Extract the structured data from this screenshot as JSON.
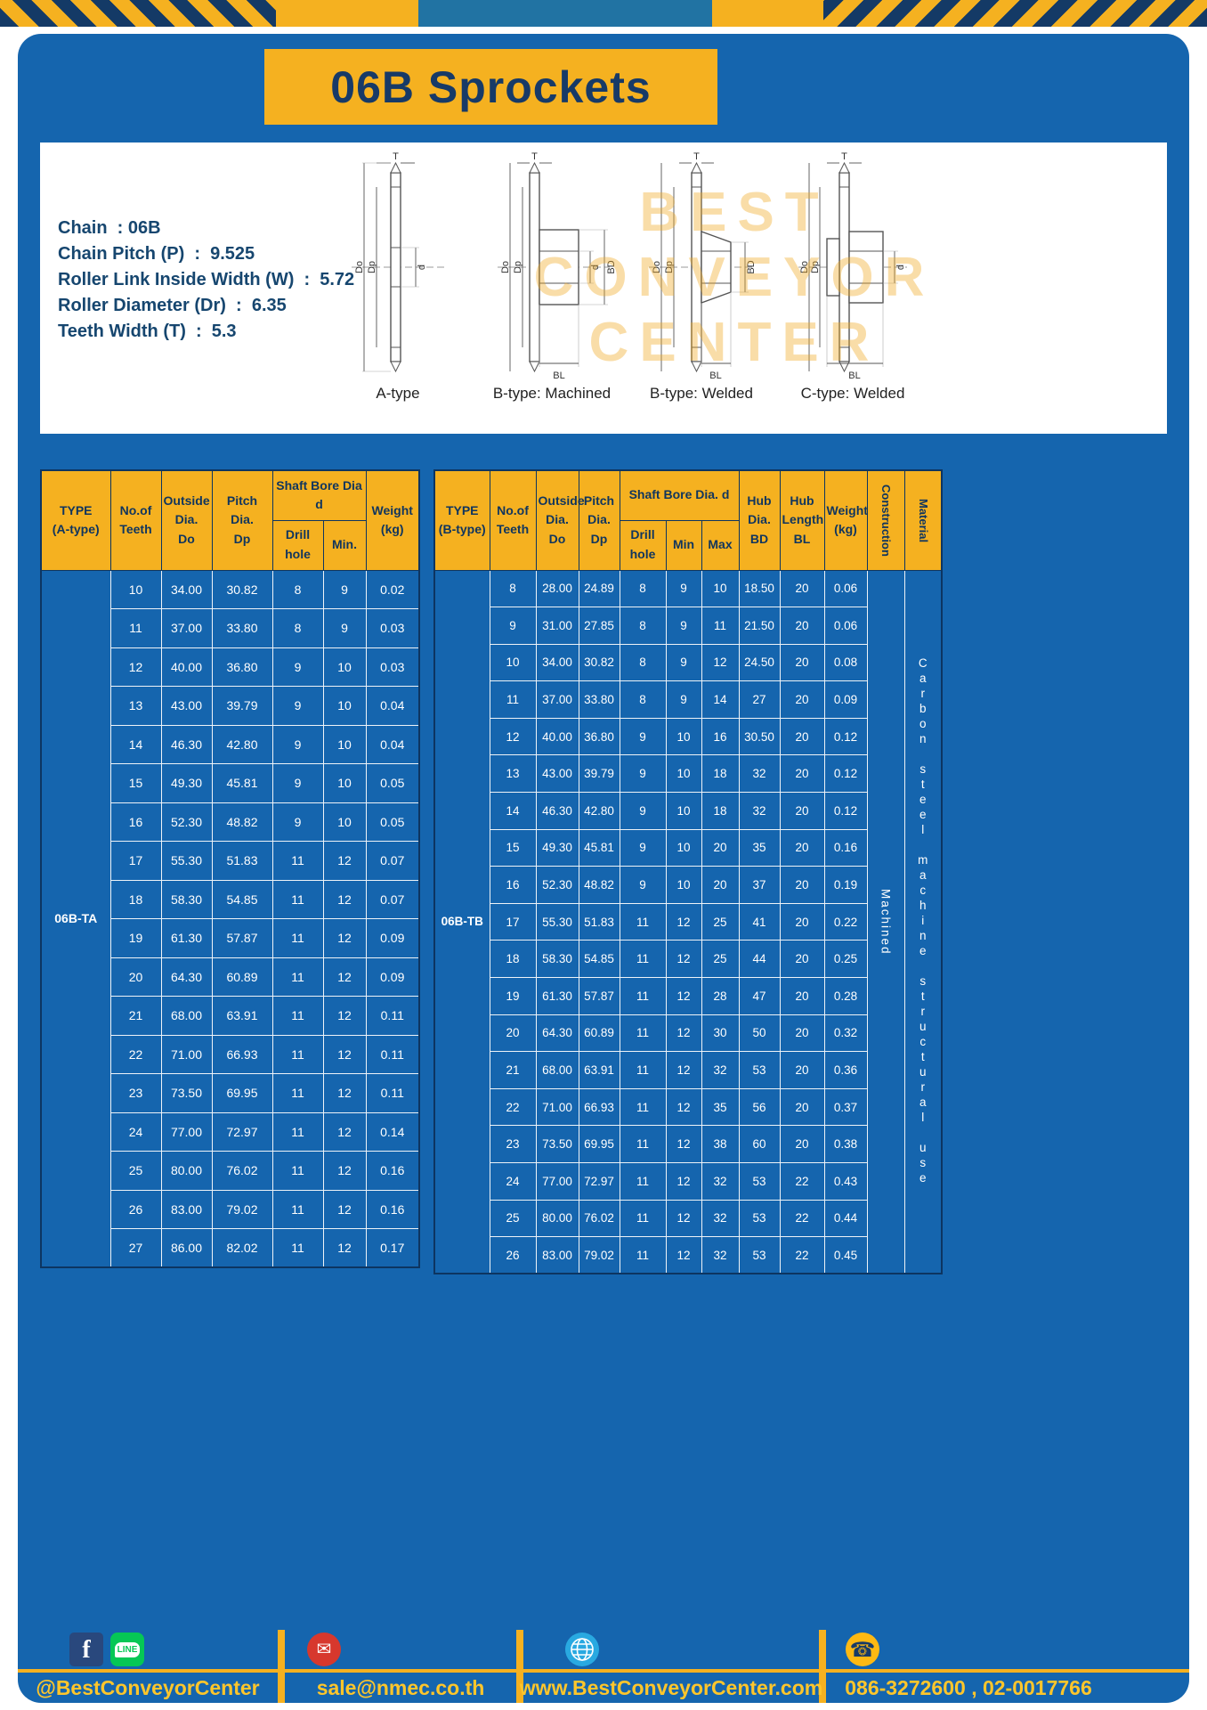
{
  "page": {
    "title": "06B Sprockets"
  },
  "colors": {
    "blue": "#1565ae",
    "yellow": "#f5b120",
    "navy": "#14365f",
    "footer_text": "#ffc62b"
  },
  "specs": {
    "lines": [
      "Chain  : 06B",
      "Chain Pitch (P)  :  9.525",
      "Roller Link Inside Width (W)  :  5.72",
      "Roller Diameter (Dr)  :  6.35",
      "Teeth Width (T)  :  5.3"
    ]
  },
  "watermark": [
    "BEST",
    "CONVEYOR",
    "CENTER"
  ],
  "dims": {
    "t": "T",
    "do": "Do",
    "dp": "Dp",
    "d": "d",
    "bd": "BD",
    "bl": "BL"
  },
  "drawings": [
    {
      "label": "A-type"
    },
    {
      "label": "B-type: Machined"
    },
    {
      "label": "B-type: Welded"
    },
    {
      "label": "C-type: Welded"
    }
  ],
  "tableA": {
    "header": {
      "type": [
        "TYPE",
        "(A-type)"
      ],
      "teeth": [
        "No.of",
        "Teeth"
      ],
      "outside": [
        "Outside",
        "Dia.",
        "Do"
      ],
      "pitch": [
        "Pitch Dia.",
        "Dp"
      ],
      "bore_group": "Shaft Bore Dia d",
      "drill": "Drill hole",
      "min": "Min.",
      "weight": [
        "Weight",
        "(kg)"
      ]
    },
    "type_value": "06B-TA",
    "rows": [
      [
        "10",
        "34.00",
        "30.82",
        "8",
        "9",
        "0.02"
      ],
      [
        "11",
        "37.00",
        "33.80",
        "8",
        "9",
        "0.03"
      ],
      [
        "12",
        "40.00",
        "36.80",
        "9",
        "10",
        "0.03"
      ],
      [
        "13",
        "43.00",
        "39.79",
        "9",
        "10",
        "0.04"
      ],
      [
        "14",
        "46.30",
        "42.80",
        "9",
        "10",
        "0.04"
      ],
      [
        "15",
        "49.30",
        "45.81",
        "9",
        "10",
        "0.05"
      ],
      [
        "16",
        "52.30",
        "48.82",
        "9",
        "10",
        "0.05"
      ],
      [
        "17",
        "55.30",
        "51.83",
        "11",
        "12",
        "0.07"
      ],
      [
        "18",
        "58.30",
        "54.85",
        "11",
        "12",
        "0.07"
      ],
      [
        "19",
        "61.30",
        "57.87",
        "11",
        "12",
        "0.09"
      ],
      [
        "20",
        "64.30",
        "60.89",
        "11",
        "12",
        "0.09"
      ],
      [
        "21",
        "68.00",
        "63.91",
        "11",
        "12",
        "0.11"
      ],
      [
        "22",
        "71.00",
        "66.93",
        "11",
        "12",
        "0.11"
      ],
      [
        "23",
        "73.50",
        "69.95",
        "11",
        "12",
        "0.11"
      ],
      [
        "24",
        "77.00",
        "72.97",
        "11",
        "12",
        "0.14"
      ],
      [
        "25",
        "80.00",
        "76.02",
        "11",
        "12",
        "0.16"
      ],
      [
        "26",
        "83.00",
        "79.02",
        "11",
        "12",
        "0.16"
      ],
      [
        "27",
        "86.00",
        "82.02",
        "11",
        "12",
        "0.17"
      ]
    ]
  },
  "tableB": {
    "header": {
      "type": [
        "TYPE",
        "(B-type)"
      ],
      "teeth": [
        "No.of",
        "Teeth"
      ],
      "outside": [
        "Outside",
        "Dia.",
        "Do"
      ],
      "pitch": [
        "Pitch",
        "Dia.",
        "Dp"
      ],
      "bore_group": "Shaft Bore Dia.  d",
      "drill": "Drill hole",
      "min": "Min",
      "max": "Max",
      "hub_dia": [
        "Hub",
        "Dia.",
        "BD"
      ],
      "hub_len": [
        "Hub",
        "Length",
        "BL"
      ],
      "weight": [
        "Weight",
        "(kg)"
      ],
      "construction": "Construction",
      "material": "Material"
    },
    "type_value": "06B-TB",
    "construction_value": "Machined",
    "material_value": "Carbon steel machine structural use",
    "rows": [
      [
        "8",
        "28.00",
        "24.89",
        "8",
        "9",
        "10",
        "18.50",
        "20",
        "0.06"
      ],
      [
        "9",
        "31.00",
        "27.85",
        "8",
        "9",
        "11",
        "21.50",
        "20",
        "0.06"
      ],
      [
        "10",
        "34.00",
        "30.82",
        "8",
        "9",
        "12",
        "24.50",
        "20",
        "0.08"
      ],
      [
        "11",
        "37.00",
        "33.80",
        "8",
        "9",
        "14",
        "27",
        "20",
        "0.09"
      ],
      [
        "12",
        "40.00",
        "36.80",
        "9",
        "10",
        "16",
        "30.50",
        "20",
        "0.12"
      ],
      [
        "13",
        "43.00",
        "39.79",
        "9",
        "10",
        "18",
        "32",
        "20",
        "0.12"
      ],
      [
        "14",
        "46.30",
        "42.80",
        "9",
        "10",
        "18",
        "32",
        "20",
        "0.12"
      ],
      [
        "15",
        "49.30",
        "45.81",
        "9",
        "10",
        "20",
        "35",
        "20",
        "0.16"
      ],
      [
        "16",
        "52.30",
        "48.82",
        "9",
        "10",
        "20",
        "37",
        "20",
        "0.19"
      ],
      [
        "17",
        "55.30",
        "51.83",
        "11",
        "12",
        "25",
        "41",
        "20",
        "0.22"
      ],
      [
        "18",
        "58.30",
        "54.85",
        "11",
        "12",
        "25",
        "44",
        "20",
        "0.25"
      ],
      [
        "19",
        "61.30",
        "57.87",
        "11",
        "12",
        "28",
        "47",
        "20",
        "0.28"
      ],
      [
        "20",
        "64.30",
        "60.89",
        "11",
        "12",
        "30",
        "50",
        "20",
        "0.32"
      ],
      [
        "21",
        "68.00",
        "63.91",
        "11",
        "12",
        "32",
        "53",
        "20",
        "0.36"
      ],
      [
        "22",
        "71.00",
        "66.93",
        "11",
        "12",
        "35",
        "56",
        "20",
        "0.37"
      ],
      [
        "23",
        "73.50",
        "69.95",
        "11",
        "12",
        "38",
        "60",
        "20",
        "0.38"
      ],
      [
        "24",
        "77.00",
        "72.97",
        "11",
        "12",
        "32",
        "53",
        "22",
        "0.43"
      ],
      [
        "25",
        "80.00",
        "76.02",
        "11",
        "12",
        "32",
        "53",
        "22",
        "0.44"
      ],
      [
        "26",
        "83.00",
        "79.02",
        "11",
        "12",
        "32",
        "53",
        "22",
        "0.45"
      ]
    ]
  },
  "footer": {
    "icons": {
      "facebook": "f",
      "line": "LINE",
      "mail": "✉",
      "phone": "☎"
    },
    "sections": [
      {
        "text": "@BestConveyorCenter"
      },
      {
        "text": "sale@nmec.co.th"
      },
      {
        "text": "www.BestConveyorCenter.com"
      },
      {
        "text": "086-3272600 , 02-0017766"
      }
    ]
  }
}
